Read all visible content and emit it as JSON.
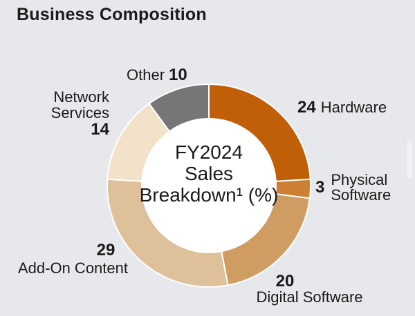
{
  "page": {
    "background": "#e7e8eb"
  },
  "header": {
    "title": "Business Composition"
  },
  "chart_data": {
    "type": "pie",
    "variant": "donut",
    "title": "FY2024 Sales Breakdown (%)",
    "unit": "%",
    "total": 100,
    "start_angle_deg": 0,
    "direction": "clockwise",
    "separator_color": "#ffffff",
    "hole_color": "#ffffff",
    "segments": [
      {
        "label": "Hardware",
        "value": 24,
        "color": "#c05f08"
      },
      {
        "label": "Physical Software",
        "value": 3,
        "color": "#cd8033"
      },
      {
        "label": "Digital Software",
        "value": 20,
        "color": "#cf9c62"
      },
      {
        "label": "Add-On Content",
        "value": 29,
        "color": "#dec09a"
      },
      {
        "label": "Network Services",
        "value": 14,
        "color": "#f3e2ca"
      },
      {
        "label": "Other",
        "value": 10,
        "color": "#767676"
      }
    ]
  },
  "center": {
    "line1": "FY2024",
    "line2": "Sales",
    "line3": "Breakdown¹ (%)"
  },
  "labels": {
    "hardware": {
      "value": "24",
      "name": "Hardware"
    },
    "physical_software": {
      "value": "3",
      "line1": "Physical",
      "line2": "Software"
    },
    "digital_software": {
      "value": "20",
      "name": "Digital Software"
    },
    "add_on_content": {
      "value": "29",
      "name": "Add-On Content"
    },
    "network_services": {
      "line1": "Network",
      "line2": "Services",
      "value": "14"
    },
    "other": {
      "name": "Other",
      "value": "10"
    }
  }
}
